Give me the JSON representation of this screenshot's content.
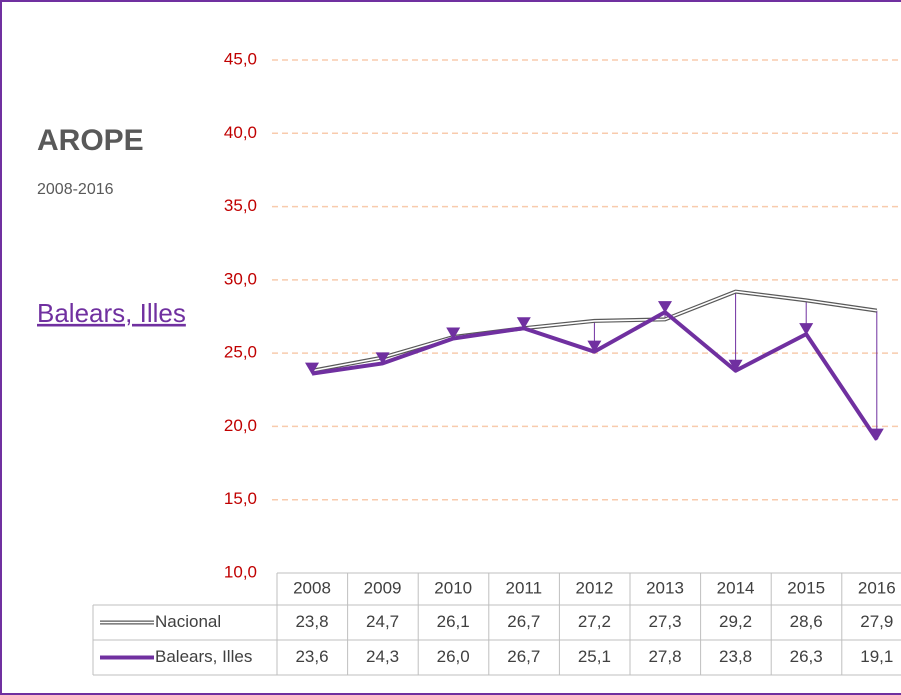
{
  "chart_data": {
    "type": "line",
    "title": "AROPE",
    "subtitle": "2008-2016",
    "region_link": "Balears, Illes",
    "categories": [
      "2008",
      "2009",
      "2010",
      "2011",
      "2012",
      "2013",
      "2014",
      "2015",
      "2016"
    ],
    "series": [
      {
        "name": "Nacional",
        "color": "#595959",
        "values": [
          23.8,
          24.7,
          26.1,
          26.7,
          27.2,
          27.3,
          29.2,
          28.6,
          27.9
        ],
        "value_labels": [
          "23,8",
          "24,7",
          "26,1",
          "26,7",
          "27,2",
          "27,3",
          "29,2",
          "28,6",
          "27,9"
        ]
      },
      {
        "name": "Balears, Illes",
        "color": "#7030a0",
        "values": [
          23.6,
          24.3,
          26.0,
          26.7,
          25.1,
          27.8,
          23.8,
          26.3,
          19.1
        ],
        "value_labels": [
          "23,6",
          "24,3",
          "26,0",
          "26,7",
          "25,1",
          "27,8",
          "23,8",
          "26,3",
          "19,1"
        ]
      }
    ],
    "ylim": [
      10,
      45
    ],
    "yticks": [
      {
        "value": 10,
        "label": "10,0"
      },
      {
        "value": 15,
        "label": "15,0"
      },
      {
        "value": 20,
        "label": "20,0"
      },
      {
        "value": 25,
        "label": "25,0"
      },
      {
        "value": 30,
        "label": "30,0"
      },
      {
        "value": 35,
        "label": "35,0"
      },
      {
        "value": 40,
        "label": "40,0"
      },
      {
        "value": 45,
        "label": "45,0"
      }
    ],
    "grid": true,
    "grid_color": "#f8cbad",
    "tick_color": "#c00000"
  }
}
